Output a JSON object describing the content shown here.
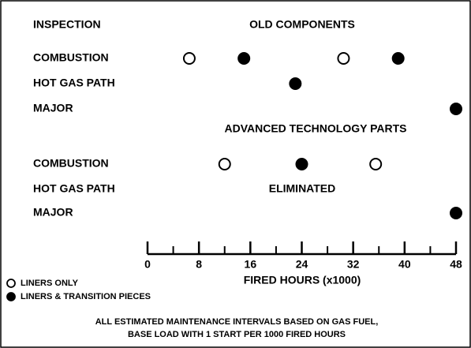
{
  "chart_data": {
    "type": "dot",
    "header": "INSPECTION",
    "groups": [
      {
        "title": "OLD COMPONENTS",
        "rows": [
          {
            "label": "COMBUSTION"
          },
          {
            "label": "HOT GAS PATH"
          },
          {
            "label": "MAJOR"
          }
        ]
      },
      {
        "title": "ADVANCED TECHNOLOGY PARTS",
        "rows": [
          {
            "label": "COMBUSTION"
          },
          {
            "label": "HOT GAS PATH",
            "note": "ELIMINATED"
          },
          {
            "label": "MAJOR"
          }
        ]
      }
    ],
    "series": [
      {
        "name": "LINERS ONLY",
        "color": "#ffffff",
        "values": [
          [
            [
              6.5,
              30.5
            ],
            [],
            []
          ],
          [
            [
              12,
              35.5
            ],
            [],
            []
          ]
        ]
      },
      {
        "name": "LINERS & TRANSITION PIECES",
        "color": "#000000",
        "values": [
          [
            [
              15,
              39
            ],
            [
              23
            ],
            [
              48
            ]
          ],
          [
            [
              24
            ],
            [],
            [
              48
            ]
          ]
        ]
      }
    ],
    "xlim": [
      0,
      48
    ],
    "xticks": [
      0,
      8,
      16,
      24,
      32,
      40,
      48
    ],
    "xminorticks": [
      4,
      12,
      20,
      28,
      36,
      44
    ],
    "xlabel": "FIRED HOURS (x1000)",
    "footnote": [
      "ALL ESTIMATED MAINTENANCE INTERVALS BASED ON GAS FUEL,",
      "BASE LOAD WITH 1 START PER 1000 FIRED HOURS"
    ]
  }
}
